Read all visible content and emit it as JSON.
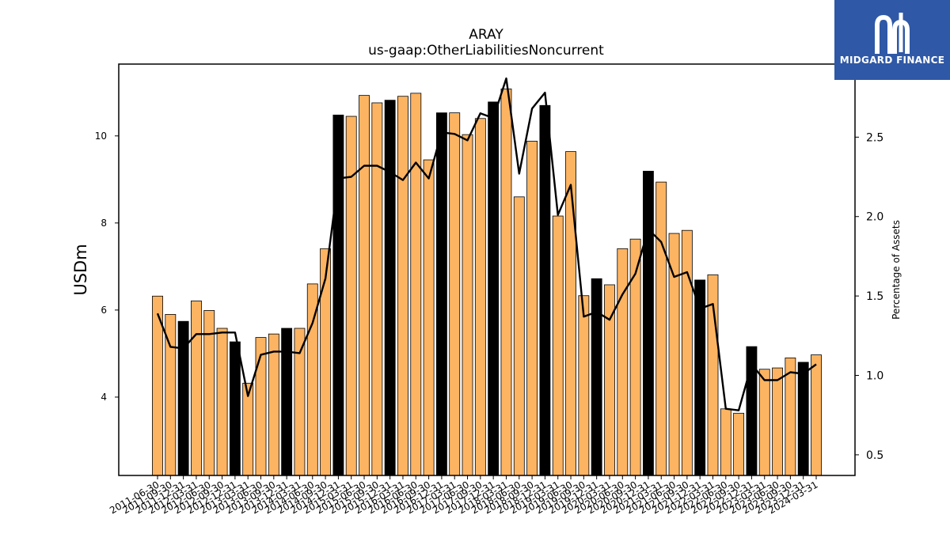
{
  "brand": {
    "name": "MIDGARD FINANCE",
    "color": "#2f58a6"
  },
  "chart_data": {
    "type": "bar",
    "title": "ARAY",
    "subtitle": "us-gaap:OtherLiabilitiesNoncurrent",
    "ylabel": "USDm",
    "y2label": "Percentage of Assets",
    "ylim": [
      2.2,
      11.65
    ],
    "y2lim": [
      0.37,
      2.96
    ],
    "yticks": [
      4,
      6,
      8,
      10
    ],
    "y2ticks": [
      0.5,
      1.0,
      1.5,
      2.0,
      2.5
    ],
    "grid": false,
    "colors": {
      "bar": "#fdb462",
      "highlight_bar": "#000000",
      "line": "#000000"
    },
    "categories": [
      "2011-06-30",
      "2011-09-30",
      "2011-12-31",
      "2012-03-31",
      "2012-06-30",
      "2012-09-30",
      "2012-12-31",
      "2013-03-31",
      "2013-06-30",
      "2013-09-30",
      "2013-12-31",
      "2014-03-31",
      "2014-06-30",
      "2014-09-30",
      "2014-12-31",
      "2015-03-31",
      "2015-06-30",
      "2015-09-30",
      "2015-12-31",
      "2016-03-31",
      "2016-06-30",
      "2016-09-30",
      "2016-12-31",
      "2017-03-31",
      "2017-06-30",
      "2017-09-30",
      "2017-12-31",
      "2018-03-31",
      "2018-06-30",
      "2018-09-30",
      "2018-12-31",
      "2019-03-31",
      "2019-06-30",
      "2019-09-30",
      "2019-12-31",
      "2020-03-31",
      "2020-06-30",
      "2020-09-30",
      "2020-12-31",
      "2021-03-31",
      "2021-06-30",
      "2021-09-30",
      "2021-12-31",
      "2022-03-31",
      "2022-06-30",
      "2022-09-30",
      "2022-12-31",
      "2023-03-31",
      "2023-06-30",
      "2023-09-30",
      "2023-12-31",
      "2024-03-31"
    ],
    "series": [
      {
        "type": "bar",
        "values": [
          6.32,
          5.9,
          5.74,
          6.21,
          5.99,
          5.58,
          5.27,
          4.32,
          5.37,
          5.45,
          5.58,
          5.58,
          6.6,
          7.41,
          10.48,
          10.45,
          10.93,
          10.76,
          10.82,
          10.91,
          10.98,
          9.45,
          10.53,
          10.53,
          10.03,
          10.4,
          10.78,
          11.08,
          8.6,
          9.88,
          10.7,
          8.16,
          9.64,
          6.33,
          6.72,
          6.58,
          7.41,
          7.63,
          9.19,
          8.94,
          7.76,
          7.83,
          6.69,
          6.81,
          3.73,
          3.63,
          5.16,
          4.64,
          4.67,
          4.9,
          4.8,
          4.97
        ],
        "highlight": [
          false,
          false,
          true,
          false,
          false,
          false,
          true,
          false,
          false,
          false,
          true,
          false,
          false,
          false,
          true,
          false,
          false,
          false,
          true,
          false,
          false,
          false,
          true,
          false,
          false,
          false,
          true,
          false,
          false,
          false,
          true,
          false,
          false,
          false,
          true,
          false,
          false,
          false,
          true,
          false,
          false,
          false,
          true,
          false,
          false,
          false,
          true,
          false,
          false,
          false,
          true,
          false
        ]
      },
      {
        "type": "line",
        "axis": "right",
        "values": [
          1.39,
          1.18,
          1.17,
          1.26,
          1.26,
          1.27,
          1.27,
          0.87,
          1.13,
          1.15,
          1.15,
          1.14,
          1.33,
          1.61,
          2.24,
          2.25,
          2.32,
          2.32,
          2.28,
          2.23,
          2.34,
          2.24,
          2.53,
          2.52,
          2.48,
          2.65,
          2.62,
          2.87,
          2.27,
          2.68,
          2.78,
          2.01,
          2.2,
          1.37,
          1.4,
          1.35,
          1.51,
          1.64,
          1.92,
          1.84,
          1.62,
          1.65,
          1.42,
          1.45,
          0.79,
          0.78,
          1.07,
          0.97,
          0.97,
          1.02,
          1.01,
          1.07
        ]
      }
    ]
  }
}
